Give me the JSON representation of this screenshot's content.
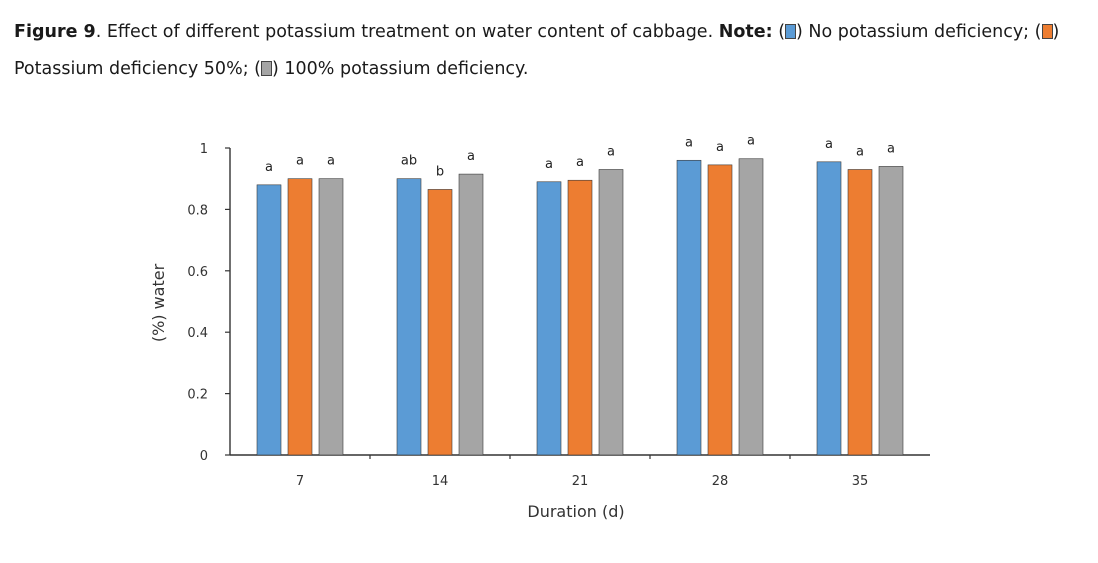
{
  "caption": {
    "fig_label": "Figure 9",
    "text": ". Effect of different potassium treatment on water content of cabbage. ",
    "note_label": "Note:",
    "legend": [
      {
        "open": " (",
        "close": ") No potassium deficiency;",
        "color": "#5b9bd5"
      },
      {
        "open": " (",
        "close": ") Potassium deficiency 50%;",
        "color": "#ed7d31"
      },
      {
        "open": " (",
        "close": ") 100% potassium deficiency.",
        "color": "#a5a5a5"
      }
    ]
  },
  "chart_data": {
    "type": "bar",
    "categories": [
      "7",
      "14",
      "21",
      "28",
      "35"
    ],
    "series": [
      {
        "name": "No potassium deficiency",
        "color": "#5b9bd5",
        "values": [
          0.88,
          0.9,
          0.89,
          0.96,
          0.955
        ]
      },
      {
        "name": "Potassium deficiency 50%",
        "color": "#ed7d31",
        "values": [
          0.9,
          0.865,
          0.895,
          0.945,
          0.93
        ]
      },
      {
        "name": "100% potassium deficiency",
        "color": "#a5a5a5",
        "values": [
          0.9,
          0.915,
          0.93,
          0.965,
          0.94
        ]
      }
    ],
    "letters": [
      [
        "a",
        "ab",
        "a",
        "a",
        "a"
      ],
      [
        "a",
        "b",
        "a",
        "a",
        "a"
      ],
      [
        "a",
        "a",
        "a",
        "a",
        "a"
      ]
    ],
    "yticks": [
      "0",
      "0.2",
      "0.4",
      "0.6",
      "0.8",
      "1"
    ],
    "ylim": [
      0,
      1
    ],
    "xlabel": "Duration (d)",
    "ylabel": "(%) water"
  }
}
